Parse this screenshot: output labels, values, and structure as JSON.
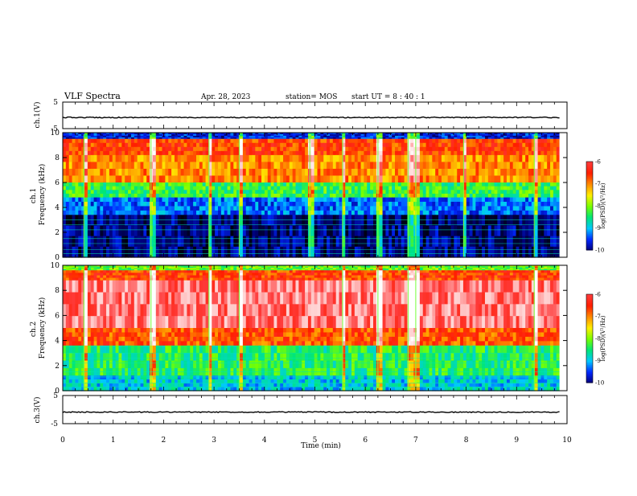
{
  "header": {
    "title": "VLF Spectra",
    "date": "Apr. 28, 2023",
    "station": "station= MOS",
    "start_ut": "start  UT =   8  : 40 : 1"
  },
  "chart_data": [
    {
      "type": "line",
      "name": "ch1-voltage",
      "ylabel": "ch.1(V)",
      "ylim": [
        -5,
        5
      ],
      "yticks": [
        {
          "v": 5,
          "label": "5"
        },
        {
          "v": -5,
          "label": "-5"
        }
      ],
      "baseline": -0.8
    },
    {
      "type": "heatmap",
      "name": "ch1-spectrogram",
      "ylabel": "ch.1\nFrequency (kHz)",
      "ylim": [
        0,
        10
      ],
      "yticks": [
        "0",
        "2",
        "4",
        "6",
        "8",
        "10"
      ],
      "colorbar": {
        "label": "log(PSD)(V²/Hz)",
        "range": [
          -10,
          -6
        ],
        "ticks": [
          "-6",
          "-7",
          "-8",
          "-9",
          "-10"
        ]
      },
      "bands_khz": [
        {
          "from": 9.5,
          "to": 10,
          "level": -9.6
        },
        {
          "from": 8.2,
          "to": 9.5,
          "level": -6.6
        },
        {
          "from": 6.0,
          "to": 8.2,
          "level": -7.0
        },
        {
          "from": 4.8,
          "to": 6.0,
          "level": -8.3
        },
        {
          "from": 3.4,
          "to": 4.8,
          "level": -9.3
        },
        {
          "from": 0.0,
          "to": 3.4,
          "level": -10.0
        }
      ],
      "spikes_min": [
        0.42,
        1.75,
        2.9,
        3.5,
        4.9,
        5.55,
        6.25,
        6.85,
        7.0,
        7.95,
        9.35
      ]
    },
    {
      "type": "heatmap",
      "name": "ch2-spectrogram",
      "ylabel": "ch.2\nFrequency (kHz)",
      "ylim": [
        0,
        10
      ],
      "yticks": [
        "0",
        "2",
        "4",
        "6",
        "8",
        "10"
      ],
      "colorbar": {
        "label": "log(PSD)(V²/Hz)",
        "range": [
          -10,
          -6
        ],
        "ticks": [
          "-6",
          "-7",
          "-8",
          "-9",
          "-10"
        ]
      },
      "bands_khz": [
        {
          "from": 9.6,
          "to": 10,
          "level": -8.1
        },
        {
          "from": 8.8,
          "to": 9.6,
          "level": -6.6
        },
        {
          "from": 5.0,
          "to": 8.8,
          "level": -5.8
        },
        {
          "from": 3.6,
          "to": 5.0,
          "level": -6.7
        },
        {
          "from": 1.2,
          "to": 3.6,
          "level": -8.4
        },
        {
          "from": 0.0,
          "to": 1.2,
          "level": -8.9
        }
      ],
      "spikes_min": [
        0.42,
        1.75,
        2.9,
        3.5,
        5.55,
        6.25,
        6.85,
        7.0,
        9.35
      ]
    },
    {
      "type": "line",
      "name": "ch3-voltage",
      "ylabel": "ch.3(V)",
      "ylim": [
        -5,
        5
      ],
      "yticks": [
        {
          "v": 5,
          "label": "5"
        },
        {
          "v": -5,
          "label": "-5"
        }
      ],
      "baseline": -0.9,
      "xlabel": "Time  (min)",
      "xlim": [
        0,
        10
      ],
      "xticks": [
        "0",
        "1",
        "2",
        "3",
        "4",
        "5",
        "6",
        "7",
        "8",
        "9",
        "10"
      ]
    }
  ]
}
